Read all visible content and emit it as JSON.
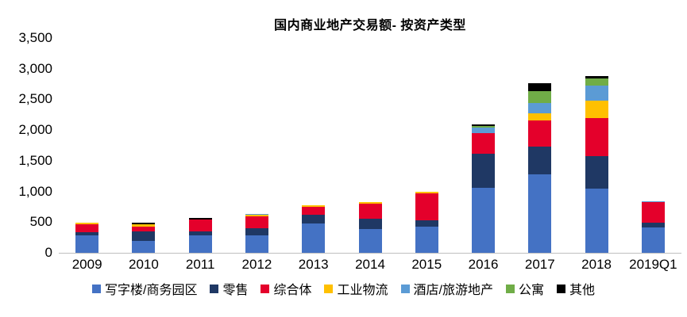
{
  "title": "国内商业地产交易额- 按资产类型",
  "chart_data": {
    "type": "bar",
    "stacked": true,
    "title": "国内商业地产交易额- 按资产类型",
    "categories": [
      "2009",
      "2010",
      "2011",
      "2012",
      "2013",
      "2014",
      "2015",
      "2016",
      "2017",
      "2018",
      "2019Q1"
    ],
    "series": [
      {
        "name": "写字楼/商务园区",
        "color": "#4472C4",
        "values": [
          280,
          200,
          285,
          280,
          480,
          390,
          430,
          1060,
          1280,
          1040,
          415
        ]
      },
      {
        "name": "零售",
        "color": "#1F3864",
        "values": [
          55,
          150,
          70,
          115,
          140,
          170,
          100,
          550,
          450,
          540,
          80
        ]
      },
      {
        "name": "综合体",
        "color": "#E4002B",
        "values": [
          130,
          80,
          190,
          200,
          130,
          240,
          440,
          335,
          425,
          610,
          330
        ]
      },
      {
        "name": "工业物流",
        "color": "#FFC000",
        "values": [
          20,
          35,
          0,
          25,
          25,
          25,
          20,
          0,
          115,
          290,
          0
        ]
      },
      {
        "name": "酒店/旅游地产",
        "color": "#5B9BD5",
        "values": [
          0,
          0,
          0,
          15,
          0,
          0,
          0,
          100,
          170,
          245,
          15
        ]
      },
      {
        "name": "公寓",
        "color": "#70AD47",
        "values": [
          0,
          0,
          0,
          0,
          0,
          0,
          0,
          25,
          195,
          115,
          0
        ]
      },
      {
        "name": "其他",
        "color": "#000000",
        "values": [
          0,
          25,
          20,
          0,
          0,
          0,
          0,
          25,
          130,
          45,
          0
        ]
      }
    ],
    "xlabel": "",
    "ylabel": "",
    "ylim": [
      0,
      3500
    ],
    "ytick_step": 500,
    "ytick_labels": [
      "0",
      "500",
      "1,000",
      "1,500",
      "2,000",
      "2,500",
      "3,000",
      "3,500"
    ],
    "grid": false,
    "legend_position": "bottom",
    "background": "#ffffff"
  }
}
